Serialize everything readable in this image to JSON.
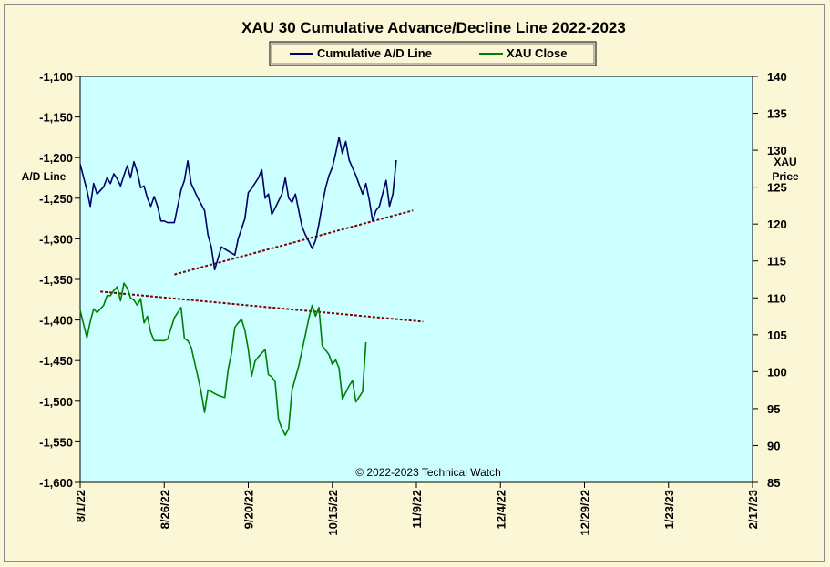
{
  "chart_data": {
    "type": "line",
    "title": "XAU 30 Cumulative Advance/Decline Line 2022-2023",
    "copyright": "© 2022-2023  Technical Watch",
    "left_axis": {
      "label": "A/D Line",
      "min": -1600,
      "max": -1100,
      "ticks": [
        -1100,
        -1150,
        -1200,
        -1250,
        -1300,
        -1350,
        -1400,
        -1450,
        -1500,
        -1550,
        -1600
      ],
      "tick_labels": [
        "-1,100",
        "-1,150",
        "-1,200",
        "-1,250",
        "-1,300",
        "-1,350",
        "-1,400",
        "-1,450",
        "-1,500",
        "-1,550",
        "-1,600"
      ]
    },
    "right_axis": {
      "label_line1": "XAU",
      "label_line2": "Price",
      "min": 85,
      "max": 140,
      "ticks": [
        140,
        135,
        130,
        125,
        120,
        115,
        110,
        105,
        100,
        95,
        90,
        85
      ],
      "tick_labels": [
        "140",
        "135",
        "130",
        "125",
        "120",
        "115",
        "110",
        "105",
        "100",
        "95",
        "90",
        "85"
      ]
    },
    "x_axis": {
      "labels": [
        "8/1/22",
        "8/26/22",
        "9/20/22",
        "10/15/22",
        "11/9/22",
        "12/4/22",
        "12/29/22",
        "1/23/23",
        "2/17/23"
      ],
      "start_date": "2022-08-01",
      "end_date": "2023-02-17"
    },
    "legend": {
      "placement": "top-center"
    },
    "colors": {
      "plot_bg": "#ccffff",
      "frame_bg": "#fbf6d6",
      "ad_line": "#000066",
      "xau_line": "#008000",
      "trend": "#800000"
    },
    "series": [
      {
        "name": "Cumulative A/D Line",
        "axis": "left",
        "color": "#000066",
        "points": [
          [
            "2022-08-01",
            -1208
          ],
          [
            "2022-08-03",
            -1240
          ],
          [
            "2022-08-04",
            -1260
          ],
          [
            "2022-08-05",
            -1232
          ],
          [
            "2022-08-06",
            -1245
          ],
          [
            "2022-08-08",
            -1236
          ],
          [
            "2022-08-09",
            -1225
          ],
          [
            "2022-08-10",
            -1232
          ],
          [
            "2022-08-11",
            -1220
          ],
          [
            "2022-08-12",
            -1226
          ],
          [
            "2022-08-13",
            -1235
          ],
          [
            "2022-08-14",
            -1222
          ],
          [
            "2022-08-15",
            -1210
          ],
          [
            "2022-08-16",
            -1225
          ],
          [
            "2022-08-17",
            -1205
          ],
          [
            "2022-08-18",
            -1218
          ],
          [
            "2022-08-19",
            -1237
          ],
          [
            "2022-08-20",
            -1235
          ],
          [
            "2022-08-21",
            -1250
          ],
          [
            "2022-08-22",
            -1260
          ],
          [
            "2022-08-23",
            -1248
          ],
          [
            "2022-08-24",
            -1260
          ],
          [
            "2022-08-25",
            -1278
          ],
          [
            "2022-08-26",
            -1278
          ],
          [
            "2022-08-27",
            -1280
          ],
          [
            "2022-08-29",
            -1280
          ],
          [
            "2022-08-31",
            -1240
          ],
          [
            "2022-09-01",
            -1228
          ],
          [
            "2022-09-02",
            -1204
          ],
          [
            "2022-09-03",
            -1232
          ],
          [
            "2022-09-05",
            -1250
          ],
          [
            "2022-09-07",
            -1265
          ],
          [
            "2022-09-08",
            -1295
          ],
          [
            "2022-09-09",
            -1310
          ],
          [
            "2022-09-10",
            -1338
          ],
          [
            "2022-09-12",
            -1310
          ],
          [
            "2022-09-14",
            -1315
          ],
          [
            "2022-09-16",
            -1320
          ],
          [
            "2022-09-17",
            -1300
          ],
          [
            "2022-09-19",
            -1275
          ],
          [
            "2022-09-20",
            -1243
          ],
          [
            "2022-09-21",
            -1238
          ],
          [
            "2022-09-23",
            -1225
          ],
          [
            "2022-09-24",
            -1215
          ],
          [
            "2022-09-25",
            -1250
          ],
          [
            "2022-09-26",
            -1245
          ],
          [
            "2022-09-27",
            -1270
          ],
          [
            "2022-09-28",
            -1262
          ],
          [
            "2022-09-30",
            -1245
          ],
          [
            "2022-10-01",
            -1225
          ],
          [
            "2022-10-02",
            -1250
          ],
          [
            "2022-10-03",
            -1255
          ],
          [
            "2022-10-04",
            -1245
          ],
          [
            "2022-10-06",
            -1285
          ],
          [
            "2022-10-07",
            -1295
          ],
          [
            "2022-10-08",
            -1303
          ],
          [
            "2022-10-09",
            -1312
          ],
          [
            "2022-10-10",
            -1302
          ],
          [
            "2022-10-11",
            -1282
          ],
          [
            "2022-10-12",
            -1258
          ],
          [
            "2022-10-13",
            -1237
          ],
          [
            "2022-10-14",
            -1222
          ],
          [
            "2022-10-15",
            -1212
          ],
          [
            "2022-10-16",
            -1195
          ],
          [
            "2022-10-17",
            -1175
          ],
          [
            "2022-10-18",
            -1195
          ],
          [
            "2022-10-19",
            -1180
          ],
          [
            "2022-10-20",
            -1203
          ],
          [
            "2022-10-22",
            -1222
          ],
          [
            "2022-10-24",
            -1245
          ],
          [
            "2022-10-25",
            -1232
          ],
          [
            "2022-10-26",
            -1252
          ],
          [
            "2022-10-27",
            -1278
          ],
          [
            "2022-10-28",
            -1265
          ],
          [
            "2022-10-29",
            -1260
          ],
          [
            "2022-10-31",
            -1228
          ],
          [
            "2022-11-01",
            -1260
          ],
          [
            "2022-11-02",
            -1245
          ],
          [
            "2022-11-03",
            -1203
          ]
        ]
      },
      {
        "name": "XAU Close",
        "axis": "right",
        "color": "#008000",
        "points": [
          [
            "2022-08-01",
            108.3
          ],
          [
            "2022-08-03",
            104.6
          ],
          [
            "2022-08-04",
            106.8
          ],
          [
            "2022-08-05",
            108.5
          ],
          [
            "2022-08-06",
            108.0
          ],
          [
            "2022-08-08",
            109.0
          ],
          [
            "2022-08-09",
            110.3
          ],
          [
            "2022-08-10",
            110.3
          ],
          [
            "2022-08-11",
            111.0
          ],
          [
            "2022-08-12",
            111.5
          ],
          [
            "2022-08-13",
            109.6
          ],
          [
            "2022-08-14",
            112.0
          ],
          [
            "2022-08-15",
            111.3
          ],
          [
            "2022-08-16",
            110.0
          ],
          [
            "2022-08-17",
            109.7
          ],
          [
            "2022-08-18",
            109.0
          ],
          [
            "2022-08-19",
            109.9
          ],
          [
            "2022-08-20",
            106.6
          ],
          [
            "2022-08-21",
            107.5
          ],
          [
            "2022-08-22",
            105.3
          ],
          [
            "2022-08-23",
            104.2
          ],
          [
            "2022-08-24",
            104.2
          ],
          [
            "2022-08-25",
            104.2
          ],
          [
            "2022-08-26",
            104.2
          ],
          [
            "2022-08-27",
            104.4
          ],
          [
            "2022-08-29",
            107.3
          ],
          [
            "2022-08-31",
            108.7
          ],
          [
            "2022-09-01",
            104.5
          ],
          [
            "2022-09-02",
            104.2
          ],
          [
            "2022-09-03",
            103.3
          ],
          [
            "2022-09-05",
            99.3
          ],
          [
            "2022-09-06",
            97.2
          ],
          [
            "2022-09-07",
            94.5
          ],
          [
            "2022-09-08",
            97.5
          ],
          [
            "2022-09-09",
            97.3
          ],
          [
            "2022-09-11",
            96.8
          ],
          [
            "2022-09-13",
            96.5
          ],
          [
            "2022-09-14",
            100.3
          ],
          [
            "2022-09-15",
            102.5
          ],
          [
            "2022-09-16",
            106.0
          ],
          [
            "2022-09-17",
            106.6
          ],
          [
            "2022-09-18",
            107.1
          ],
          [
            "2022-09-19",
            105.6
          ],
          [
            "2022-09-20",
            103.0
          ],
          [
            "2022-09-21",
            99.4
          ],
          [
            "2022-09-22",
            101.4
          ],
          [
            "2022-09-23",
            102.0
          ],
          [
            "2022-09-25",
            103.0
          ],
          [
            "2022-09-26",
            99.6
          ],
          [
            "2022-09-27",
            99.3
          ],
          [
            "2022-09-28",
            98.6
          ],
          [
            "2022-09-29",
            93.5
          ],
          [
            "2022-09-30",
            92.3
          ],
          [
            "2022-10-01",
            91.4
          ],
          [
            "2022-10-02",
            92.3
          ],
          [
            "2022-10-03",
            97.5
          ],
          [
            "2022-10-05",
            100.8
          ],
          [
            "2022-10-07",
            105.0
          ],
          [
            "2022-10-08",
            107.2
          ],
          [
            "2022-10-09",
            109.0
          ],
          [
            "2022-10-10",
            107.5
          ],
          [
            "2022-10-11",
            108.7
          ],
          [
            "2022-10-12",
            103.5
          ],
          [
            "2022-10-14",
            102.3
          ],
          [
            "2022-10-15",
            101.0
          ],
          [
            "2022-10-16",
            101.6
          ],
          [
            "2022-10-17",
            100.5
          ],
          [
            "2022-10-18",
            96.3
          ],
          [
            "2022-10-19",
            97.2
          ],
          [
            "2022-10-20",
            98.1
          ],
          [
            "2022-10-21",
            98.8
          ],
          [
            "2022-10-22",
            95.9
          ],
          [
            "2022-10-24",
            97.3
          ],
          [
            "2022-10-25",
            104.0
          ]
        ]
      }
    ],
    "trendlines": [
      {
        "axis": "left",
        "from": [
          "2022-08-29",
          -1344
        ],
        "to": [
          "2022-11-08",
          -1265
        ]
      },
      {
        "axis": "left",
        "from": [
          "2022-08-07",
          -1365
        ],
        "to": [
          "2022-11-11",
          -1402
        ]
      }
    ]
  }
}
